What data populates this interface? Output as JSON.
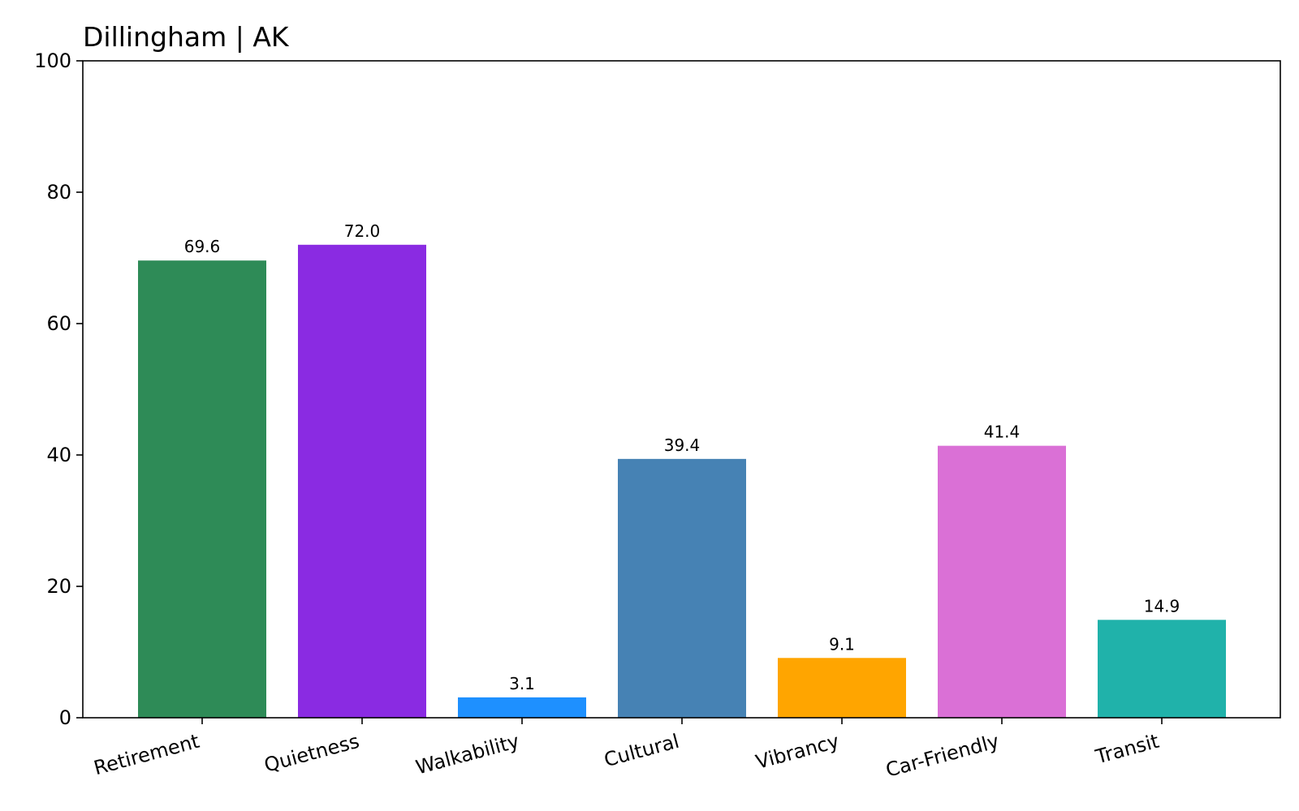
{
  "chart_data": {
    "type": "bar",
    "title": "Dillingham | AK",
    "xlabel": "",
    "ylabel": "",
    "categories": [
      "Retirement",
      "Quietness",
      "Walkability",
      "Cultural",
      "Vibrancy",
      "Car-Friendly",
      "Transit"
    ],
    "values": [
      69.6,
      72.0,
      3.1,
      39.4,
      9.1,
      41.4,
      14.9
    ],
    "value_labels": [
      "69.6",
      "72.0",
      "3.1",
      "39.4",
      "9.1",
      "41.4",
      "14.9"
    ],
    "colors": [
      "#2e8b57",
      "#8a2be2",
      "#1e90ff",
      "#4682b4",
      "#ffa500",
      "#da70d6",
      "#20b2aa"
    ],
    "ylim": [
      0,
      100
    ],
    "yticks": [
      0,
      20,
      40,
      60,
      80,
      100
    ],
    "ytick_labels": [
      "0",
      "20",
      "40",
      "60",
      "80",
      "100"
    ],
    "grid": false,
    "legend": "none",
    "xtick_rotation": "angled"
  }
}
